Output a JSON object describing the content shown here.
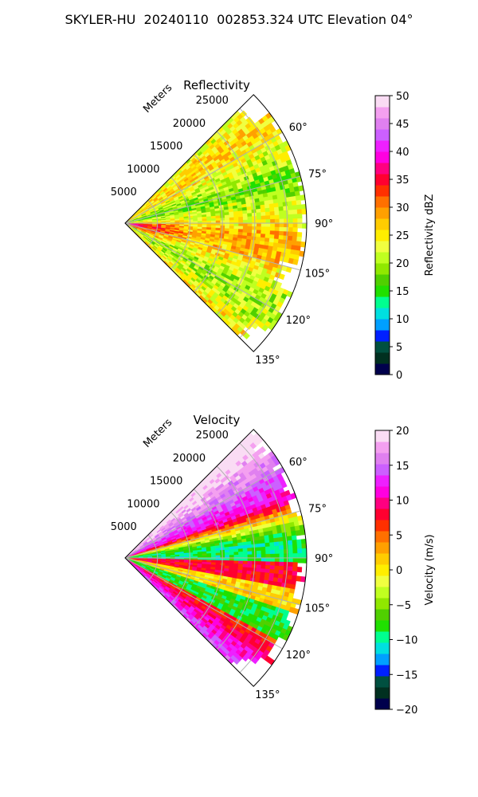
{
  "page": {
    "title": "SKYLER-HU  20240110  002853.324 UTC Elevation 04°"
  },
  "chart_data": [
    {
      "type": "heatmap",
      "projection": "polar-sector",
      "title": "Reflectivity",
      "range_label": "Meters",
      "range_ticks": [
        5000,
        10000,
        15000,
        20000,
        25000
      ],
      "range_tick_labels": [
        "5000",
        "10000",
        "15000",
        "20000",
        "25000"
      ],
      "range_max": 28000,
      "theta_range_deg": [
        45,
        135
      ],
      "theta_ticks_deg": [
        60,
        75,
        90,
        105,
        120,
        135
      ],
      "theta_tick_labels": [
        "60°",
        "75°",
        "90°",
        "105°",
        "120°",
        "135°"
      ],
      "grid": true,
      "colorbar": {
        "label": "Reflectivity dBZ",
        "min": 0,
        "max": 50,
        "ticks": [
          0,
          5,
          10,
          15,
          20,
          25,
          30,
          35,
          40,
          45,
          50
        ],
        "tick_labels": [
          "0",
          "5",
          "10",
          "15",
          "20",
          "25",
          "30",
          "35",
          "40",
          "45",
          "50"
        ],
        "palette": [
          "#00004c",
          "#003020",
          "#005040",
          "#0020ff",
          "#00a0ff",
          "#00e0e0",
          "#00ff90",
          "#20e000",
          "#50d000",
          "#90e800",
          "#c0ff20",
          "#f0ff40",
          "#ffee00",
          "#ffcc00",
          "#ffa000",
          "#ff7000",
          "#ff3000",
          "#ff0030",
          "#ff0080",
          "#ff00e0",
          "#ee20ff",
          "#cc60ff",
          "#e080f0",
          "#f4a0f0",
          "#fadcf4"
        ]
      },
      "field_summary": "mostly 20-30 dBZ; strongest (~35 dBZ) near the radar around 95-110°"
    },
    {
      "type": "heatmap",
      "projection": "polar-sector",
      "title": "Velocity",
      "range_label": "Meters",
      "range_ticks": [
        5000,
        10000,
        15000,
        20000,
        25000
      ],
      "range_tick_labels": [
        "5000",
        "10000",
        "15000",
        "20000",
        "25000"
      ],
      "range_max": 28000,
      "theta_range_deg": [
        45,
        135
      ],
      "theta_ticks_deg": [
        60,
        75,
        90,
        105,
        120,
        135
      ],
      "theta_tick_labels": [
        "60°",
        "75°",
        "90°",
        "105°",
        "120°",
        "135°"
      ],
      "grid": true,
      "colorbar": {
        "label": "Velocity (m/s)",
        "min": -20,
        "max": 20,
        "ticks": [
          -20,
          -15,
          -10,
          -5,
          0,
          5,
          10,
          15,
          20
        ],
        "tick_labels": [
          "−20",
          "−15",
          "−10",
          "−5",
          "0",
          "5",
          "10",
          "15",
          "20"
        ],
        "palette": [
          "#00004c",
          "#003020",
          "#005040",
          "#0020ff",
          "#00a0ff",
          "#00e0e0",
          "#00ff90",
          "#20e000",
          "#50d000",
          "#90e800",
          "#c0ff20",
          "#f0ff40",
          "#ffee00",
          "#ffcc00",
          "#ffa000",
          "#ff7000",
          "#ff3000",
          "#ff0030",
          "#ff0080",
          "#ff00e0",
          "#ee20ff",
          "#cc60ff",
          "#e080f0",
          "#f4a0f0",
          "#fadcf4"
        ]
      },
      "field_summary": "inbound (negative) and outbound (positive) bands alternating with azimuth; ~+15 m/s near 60° and 135°, ~−10 m/s near 85-95°"
    }
  ]
}
